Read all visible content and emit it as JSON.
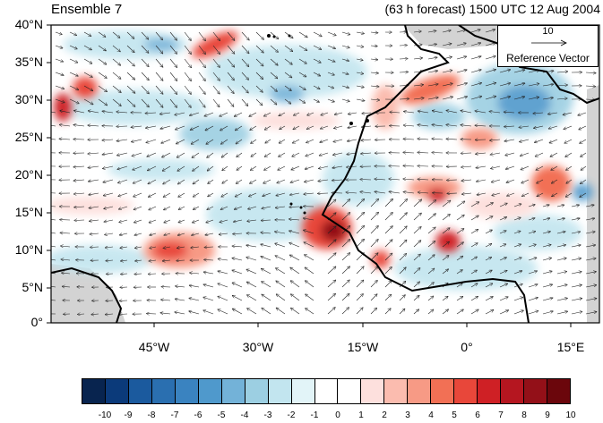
{
  "title_left": "Ensemble 7",
  "title_right": "(63 h forecast) 1500 UTC 12 Aug 2004",
  "lat_labels": [
    "40°N",
    "35°N",
    "30°N",
    "25°N",
    "20°N",
    "15°N",
    "10°N",
    "5°N",
    "0°"
  ],
  "lon_labels": [
    "45°W",
    "30°W",
    "15°W",
    "0°",
    "15°E"
  ],
  "reference_vector": {
    "magnitude": "10",
    "label": "Reference Vector"
  },
  "colorbar": {
    "labels": [
      "-10",
      "-9",
      "-8",
      "-7",
      "-6",
      "-5",
      "-4",
      "-3",
      "-2",
      "-1",
      "0",
      "1",
      "2",
      "3",
      "4",
      "5",
      "6",
      "7",
      "8",
      "9",
      "10"
    ],
    "colors": [
      "#08244f",
      "#0b3a7a",
      "#1b5a9e",
      "#2a6fb0",
      "#3a83c0",
      "#4f99cc",
      "#73b2d8",
      "#9ccfe2",
      "#c2e5ef",
      "#e2f4f8",
      "#ffffff",
      "#ffffff",
      "#fde0dd",
      "#fbbcaf",
      "#f79a85",
      "#f27055",
      "#e8473a",
      "#cf2025",
      "#b51620",
      "#931018",
      "#6b060c"
    ]
  },
  "colors": {
    "land_outline": "#000000",
    "masked": "#d3d3d3"
  }
}
